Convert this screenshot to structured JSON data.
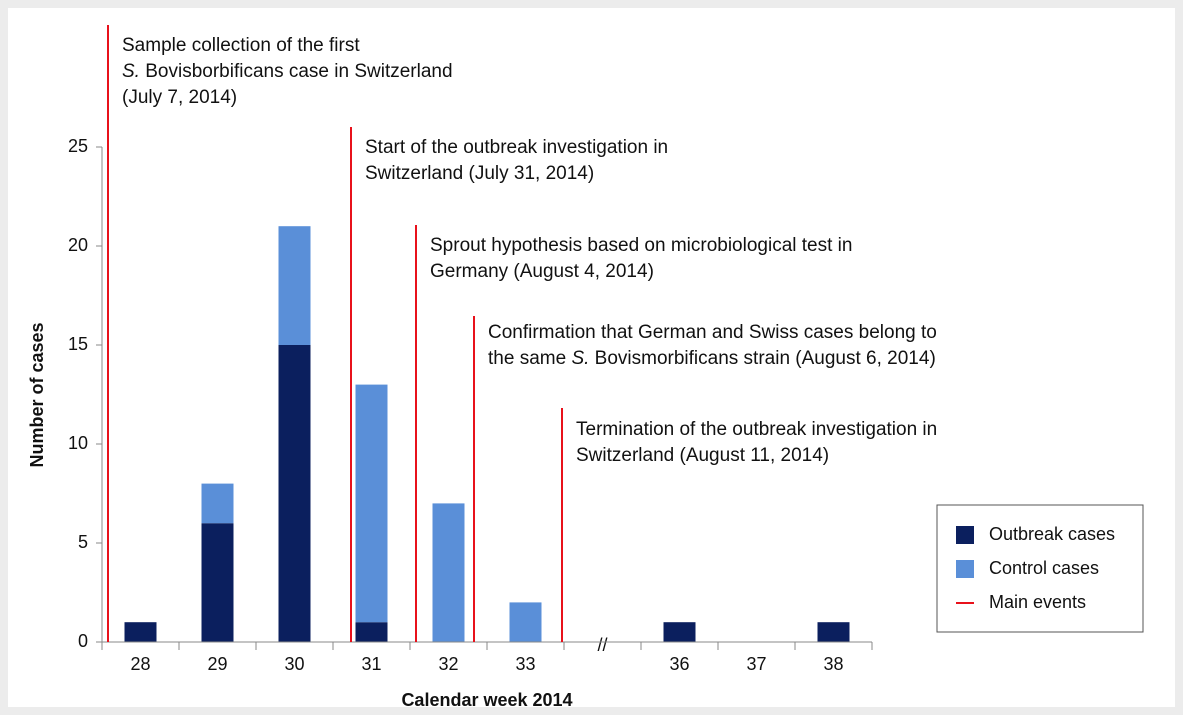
{
  "chart_data": {
    "type": "stacked_bar",
    "x_label": "Calendar week 2014",
    "y_label": "Number of cases",
    "categories": [
      "28",
      "29",
      "30",
      "31",
      "32",
      "33",
      null,
      "36",
      "37",
      "38"
    ],
    "axis_break_label": "//",
    "series": [
      {
        "name": "Outbreak cases",
        "color": "#0b1f5e",
        "values": [
          1,
          6,
          15,
          1,
          0,
          0,
          null,
          1,
          0,
          1
        ]
      },
      {
        "name": "Control cases",
        "color": "#5a8fd8",
        "values": [
          0,
          2,
          6,
          12,
          7,
          2,
          null,
          0,
          0,
          0
        ]
      }
    ],
    "ylim": [
      0,
      25
    ],
    "yticks": [
      0,
      5,
      10,
      15,
      20,
      25
    ],
    "events": {
      "name": "Main events",
      "color": "#e8111b",
      "items": [
        {
          "lines": [
            [
              "Sample collection of the first"
            ],
            [
              {
                "text": "S.",
                "italic": true
              },
              " Bovisborbificans case in Switzerland"
            ],
            [
              "(July 7, 2014)"
            ]
          ]
        },
        {
          "lines": [
            [
              "Start of the outbreak investigation in"
            ],
            [
              "Switzerland (July 31, 2014)"
            ]
          ]
        },
        {
          "lines": [
            [
              "Sprout hypothesis based on microbiological test in"
            ],
            [
              "Germany (August 4, 2014)"
            ]
          ]
        },
        {
          "lines": [
            [
              "Confirmation that German and Swiss cases belong to"
            ],
            [
              "the same ",
              {
                "text": "S.",
                "italic": true
              },
              " Bovismorbificans strain (August 6, 2014)"
            ]
          ]
        },
        {
          "lines": [
            [
              "Termination of the outbreak investigation in"
            ],
            [
              "Switzerland (August 11, 2014)"
            ]
          ]
        }
      ]
    },
    "legend": "lower right"
  }
}
